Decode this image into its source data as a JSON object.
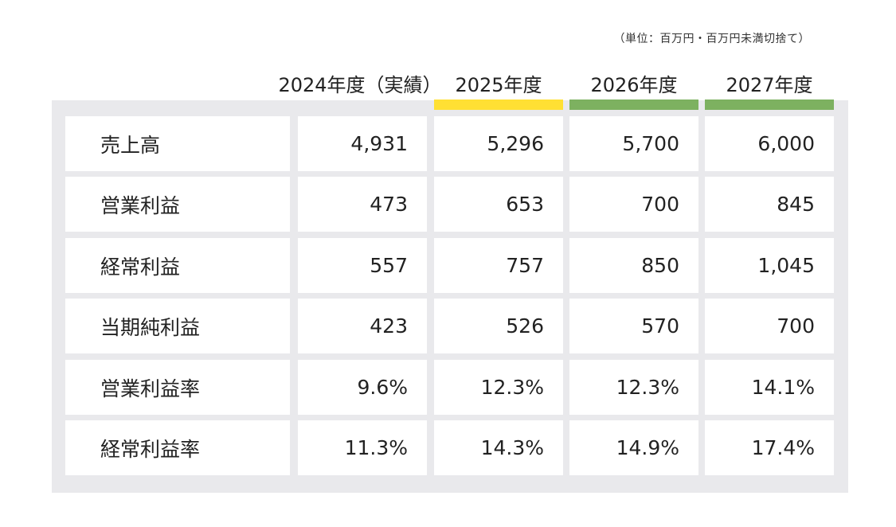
{
  "unit_note": "（単位：百万円・百万円未満切捨て）",
  "columns": [
    {
      "label": "2024年度（実績）",
      "highlight": null
    },
    {
      "label": "2025年度",
      "highlight": "#ffe033"
    },
    {
      "label": "2026年度",
      "highlight": "#7db160"
    },
    {
      "label": "2027年度",
      "highlight": "#7db160"
    }
  ],
  "rows": [
    {
      "label": "売上高",
      "values": [
        "4,931",
        "5,296",
        "5,700",
        "6,000"
      ]
    },
    {
      "label": "営業利益",
      "values": [
        "473",
        "653",
        "700",
        "845"
      ]
    },
    {
      "label": "経常利益",
      "values": [
        "557",
        "757",
        "850",
        "1,045"
      ]
    },
    {
      "label": "当期純利益",
      "values": [
        "423",
        "526",
        "570",
        "700"
      ]
    },
    {
      "label": "営業利益率",
      "values": [
        "9.6%",
        "12.3%",
        "12.3%",
        "14.1%"
      ]
    },
    {
      "label": "経常利益率",
      "values": [
        "11.3%",
        "14.3%",
        "14.9%",
        "17.4%"
      ]
    }
  ],
  "chart_data": {
    "type": "table",
    "categories": [
      "2024年度（実績）",
      "2025年度",
      "2026年度",
      "2027年度"
    ],
    "series": [
      {
        "name": "売上高",
        "values": [
          4931,
          5296,
          5700,
          6000
        ]
      },
      {
        "name": "営業利益",
        "values": [
          473,
          653,
          700,
          845
        ]
      },
      {
        "name": "経常利益",
        "values": [
          557,
          757,
          850,
          1045
        ]
      },
      {
        "name": "当期純利益",
        "values": [
          423,
          526,
          570,
          700
        ]
      },
      {
        "name": "営業利益率",
        "values": [
          9.6,
          12.3,
          12.3,
          14.1
        ]
      },
      {
        "name": "経常利益率",
        "values": [
          11.3,
          14.3,
          14.9,
          17.4
        ]
      }
    ]
  }
}
